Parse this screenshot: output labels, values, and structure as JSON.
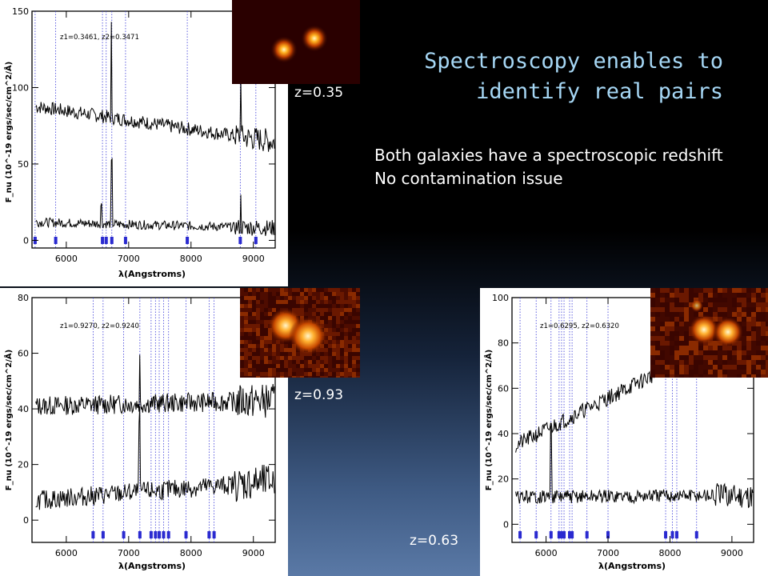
{
  "title": {
    "line1": "Spectroscopy enables to",
    "line2": "identify real pairs"
  },
  "bullets": [
    "Both galaxies have a spectroscopic redshift",
    "No contamination issue"
  ],
  "redshift_labels": {
    "top_left": "z=0.35",
    "bottom_left": "z=0.93",
    "bottom_right": "z=0.63"
  },
  "spectra": {
    "top_left": {
      "redshifts": "z1=0.3461,  z2=0.3471",
      "ylabel": "F_nu (10^-19 ergs/sec/cm^2/Å)",
      "xlabel": "λ(Angstroms)",
      "x_ticks": [
        "6000",
        "7000",
        "8000",
        "9000"
      ],
      "y_ticks": [
        "0",
        "50",
        "100",
        "150"
      ],
      "xlim": [
        5450,
        9350
      ],
      "ylim": [
        -5,
        150
      ]
    },
    "bottom_left": {
      "redshifts": "z1=0.9270,  z2=0.9240",
      "ylabel": "F_nu (10^-19 ergs/sec/cm^2/Å)",
      "xlabel": "λ(Angstroms)",
      "x_ticks": [
        "6000",
        "7000",
        "8000",
        "9000"
      ],
      "y_ticks": [
        "0",
        "20",
        "40",
        "60",
        "80"
      ],
      "xlim": [
        5450,
        9350
      ],
      "ylim": [
        -8,
        80
      ]
    },
    "bottom_right": {
      "redshifts": "z1=0.6295,  z2=0.6320",
      "ylabel": "F_nu (10^-19 ergs/sec/cm^2/Å)",
      "xlabel": "λ(Angstroms)",
      "x_ticks": [
        "6000",
        "7000",
        "8000",
        "9000"
      ],
      "y_ticks": [
        "0",
        "20",
        "40",
        "60",
        "80",
        "100"
      ],
      "xlim": [
        5450,
        9350
      ],
      "ylim": [
        -8,
        100
      ]
    }
  },
  "colors": {
    "title": "#a6d7f5",
    "line_marker": "#1a1ad0",
    "spectrum": "#000000"
  }
}
